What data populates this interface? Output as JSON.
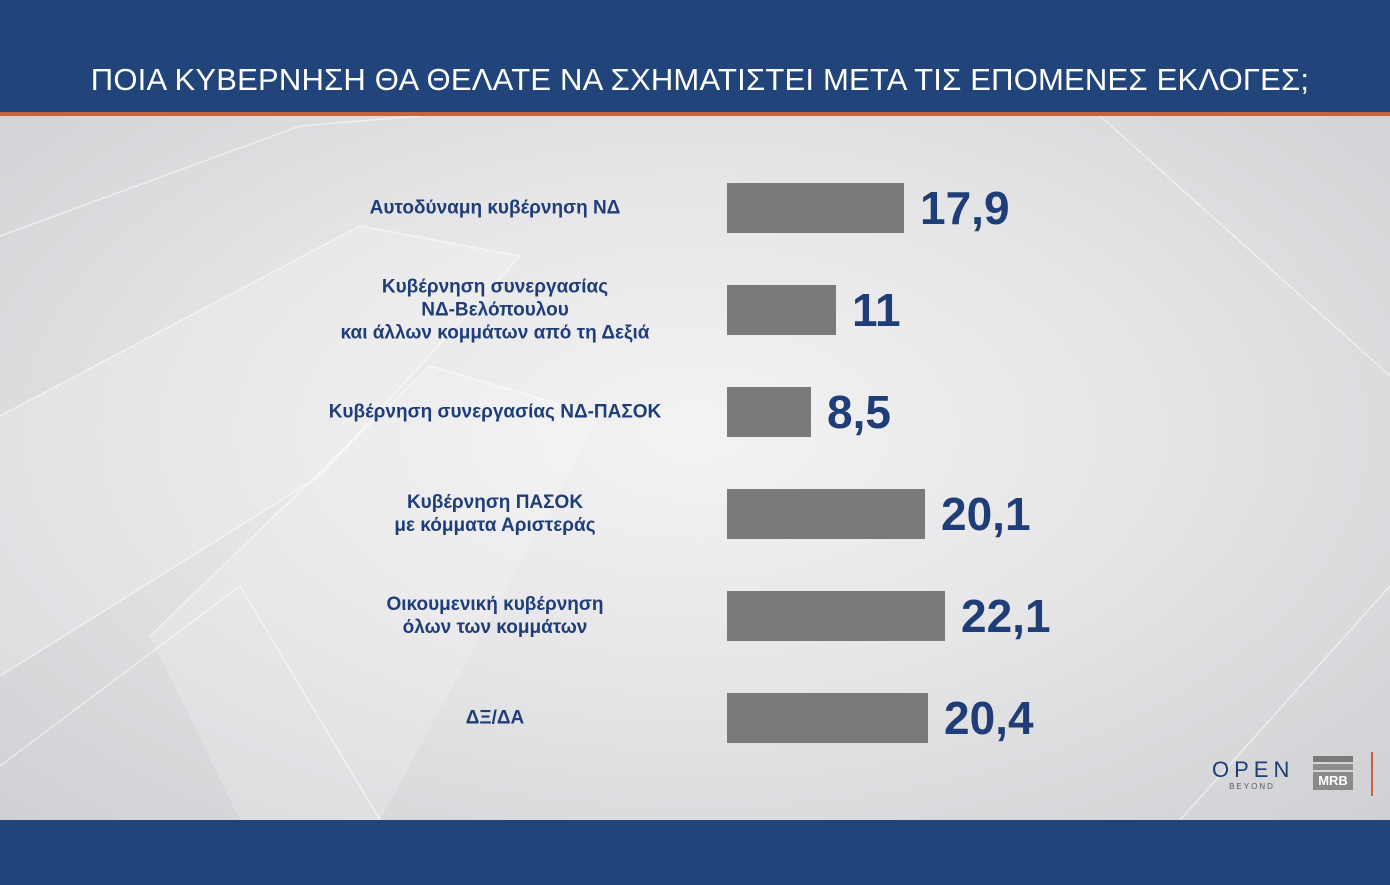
{
  "title": "ΠΟΙΑ ΚΥΒΕΡΝΗΣΗ ΘΑ ΘΕΛΑΤΕ ΝΑ ΣΧΗΜΑΤΙΣΤΕΙ ΜΕΤΑ ΤΙΣ ΕΠΟΜΕΝΕΣ ΕΚΛΟΓΕΣ;",
  "colors": {
    "header_bg": "#21457a",
    "accent": "#c8643c",
    "bar": "#7a7a7a",
    "text": "#1f3d77"
  },
  "chart_data": {
    "type": "bar",
    "orientation": "horizontal",
    "title": "ΠΟΙΑ ΚΥΒΕΡΝΗΣΗ ΘΑ ΘΕΛΑΤΕ ΝΑ ΣΧΗΜΑΤΙΣΤΕΙ ΜΕΤΑ ΤΙΣ ΕΠΟΜΕΝΕΣ ΕΚΛΟΓΕΣ;",
    "categories": [
      "Αυτοδύναμη κυβέρνηση ΝΔ",
      "Κυβέρνηση συνεργασίας\nΝΔ-Βελόπουλου\nκαι άλλων κομμάτων από τη Δεξιά",
      "Κυβέρνηση συνεργασίας ΝΔ-ΠΑΣΟΚ",
      "Κυβέρνηση ΠΑΣΟΚ\nμε κόμματα Αριστεράς",
      "Οικουμενική κυβέρνηση\nόλων των κομμάτων",
      "ΔΞ/ΔΑ"
    ],
    "values": [
      17.9,
      11,
      8.5,
      20.1,
      22.1,
      20.4
    ],
    "value_labels": [
      "17,9",
      "11",
      "8,5",
      "20,1",
      "22,1",
      "20,4"
    ],
    "xlim": [
      0,
      22.1
    ],
    "grid": false,
    "legend": "none"
  },
  "logos": {
    "open": "OPEN",
    "open_sub": "BEYOND",
    "mrb": "MRB"
  }
}
